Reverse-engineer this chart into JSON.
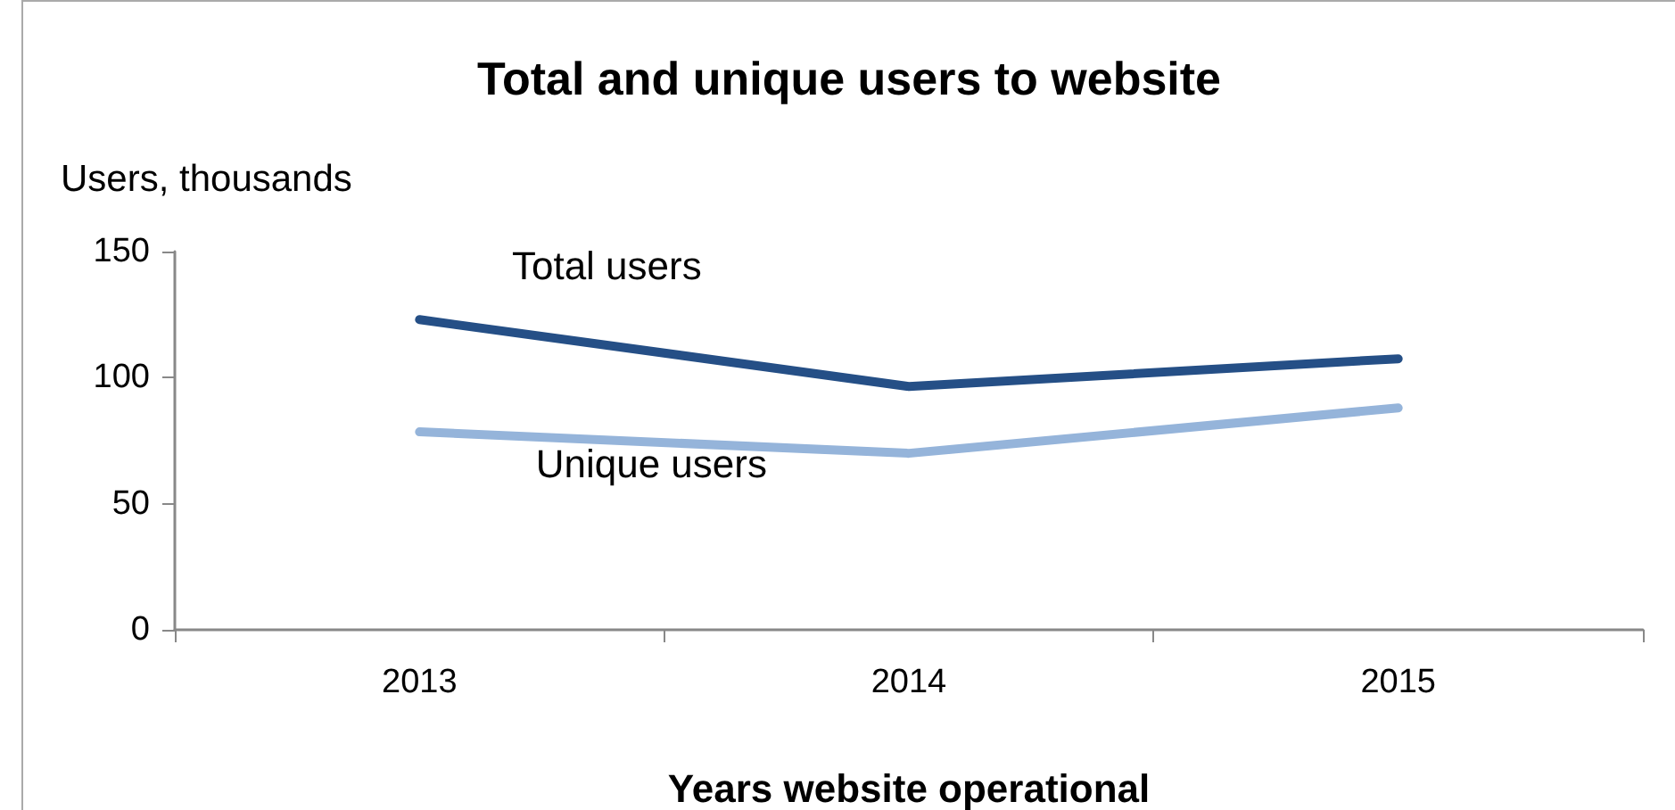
{
  "chart_data": {
    "type": "line",
    "title": "Total and unique users to website",
    "xlabel": "Years website operational",
    "ylabel": "Users, thousands",
    "categories": [
      "2013",
      "2014",
      "2015"
    ],
    "series": [
      {
        "name": "Total users",
        "color": "#254f86",
        "values": [
          123,
          96.5,
          107.5
        ]
      },
      {
        "name": "Unique users",
        "color": "#95b4da",
        "values": [
          78.5,
          70,
          88
        ]
      }
    ],
    "ylim": [
      0,
      150
    ],
    "yticks": [
      0,
      50,
      100,
      150
    ],
    "grid": false,
    "legend": false,
    "marker": "none",
    "line_style": "solid"
  }
}
